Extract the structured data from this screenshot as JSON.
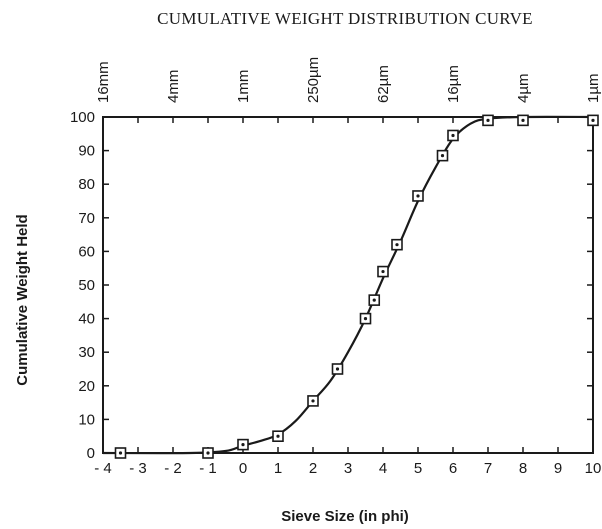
{
  "chart_data": {
    "type": "line",
    "title": "CUMULATIVE WEIGHT DISTRIBUTION CURVE",
    "xlabel": "Sieve Size (in phi)",
    "ylabel": "Cumulative Weight Held",
    "xlim": [
      -4,
      10
    ],
    "ylim": [
      0,
      100
    ],
    "x_ticks": [
      -4,
      -3,
      -2,
      -1,
      0,
      1,
      2,
      3,
      4,
      5,
      6,
      7,
      8,
      9,
      10
    ],
    "x_tick_labels": [
      "- 4",
      "- 3",
      "- 2",
      "- 1",
      "0",
      "1",
      "2",
      "3",
      "4",
      "5",
      "6",
      "7",
      "8",
      "9",
      "10"
    ],
    "y_ticks": [
      0,
      10,
      20,
      30,
      40,
      50,
      60,
      70,
      80,
      90,
      100
    ],
    "y_tick_labels": [
      "0",
      "10",
      "20",
      "30",
      "40",
      "50",
      "60",
      "70",
      "80",
      "90",
      "100"
    ],
    "top_axis": [
      {
        "label": "16mm",
        "phi": -4
      },
      {
        "label": "4mm",
        "phi": -2
      },
      {
        "label": "1mm",
        "phi": 0
      },
      {
        "label": "250µm",
        "phi": 2
      },
      {
        "label": "62µm",
        "phi": 4
      },
      {
        "label": "16µm",
        "phi": 6
      },
      {
        "label": "4µm",
        "phi": 8
      },
      {
        "label": "1µm",
        "phi": 10
      }
    ],
    "series": [
      {
        "points": [
          {
            "x": -3.5,
            "y": 0
          },
          {
            "x": -1.0,
            "y": 0
          },
          {
            "x": 0.0,
            "y": 2.5
          },
          {
            "x": 1.0,
            "y": 5
          },
          {
            "x": 2.0,
            "y": 15.5
          },
          {
            "x": 2.7,
            "y": 25
          },
          {
            "x": 3.5,
            "y": 40
          },
          {
            "x": 3.75,
            "y": 45.5
          },
          {
            "x": 4.0,
            "y": 54
          },
          {
            "x": 4.4,
            "y": 62
          },
          {
            "x": 5.0,
            "y": 76.5
          },
          {
            "x": 5.7,
            "y": 88.5
          },
          {
            "x": 6.0,
            "y": 94.5
          },
          {
            "x": 7.0,
            "y": 99
          },
          {
            "x": 8.0,
            "y": 99
          },
          {
            "x": 10.0,
            "y": 99
          }
        ],
        "curve": [
          {
            "x": -4,
            "y": 0
          },
          {
            "x": -1.5,
            "y": 0
          },
          {
            "x": -0.5,
            "y": 0.6
          },
          {
            "x": 0.0,
            "y": 2.2
          },
          {
            "x": 0.5,
            "y": 3.6
          },
          {
            "x": 1.0,
            "y": 5.5
          },
          {
            "x": 1.5,
            "y": 9.5
          },
          {
            "x": 2.0,
            "y": 15.5
          },
          {
            "x": 2.5,
            "y": 21.5
          },
          {
            "x": 3.0,
            "y": 30
          },
          {
            "x": 3.5,
            "y": 40
          },
          {
            "x": 4.0,
            "y": 52
          },
          {
            "x": 4.5,
            "y": 63
          },
          {
            "x": 5.0,
            "y": 75
          },
          {
            "x": 5.5,
            "y": 85
          },
          {
            "x": 6.0,
            "y": 93.5
          },
          {
            "x": 6.5,
            "y": 98
          },
          {
            "x": 7.0,
            "y": 99.5
          },
          {
            "x": 8.0,
            "y": 100
          },
          {
            "x": 10.0,
            "y": 100
          }
        ]
      }
    ]
  }
}
